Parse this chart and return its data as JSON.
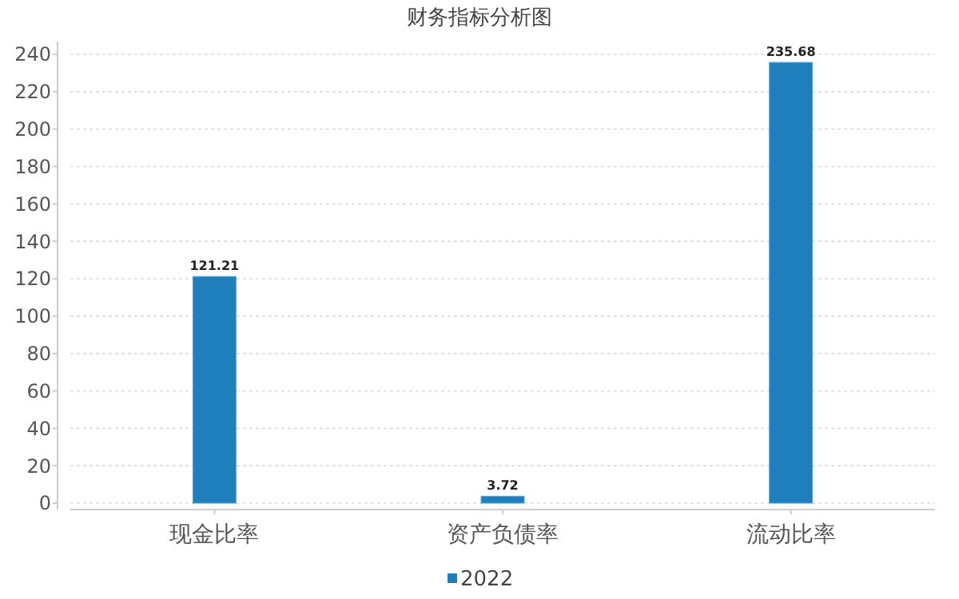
{
  "chart_data": {
    "type": "bar",
    "title": "财务指标分析图",
    "categories": [
      "现金比率",
      "资产负债率",
      "流动比率"
    ],
    "series": [
      {
        "name": "2022",
        "color": "#1f7fbd",
        "values": [
          121.21,
          3.72,
          235.68
        ]
      }
    ],
    "ylim": [
      0,
      240
    ],
    "yticks": [
      0,
      20,
      40,
      60,
      80,
      100,
      120,
      140,
      160,
      180,
      200,
      220,
      240
    ],
    "grid": "y",
    "legend": "bottom",
    "data_labels": true
  }
}
